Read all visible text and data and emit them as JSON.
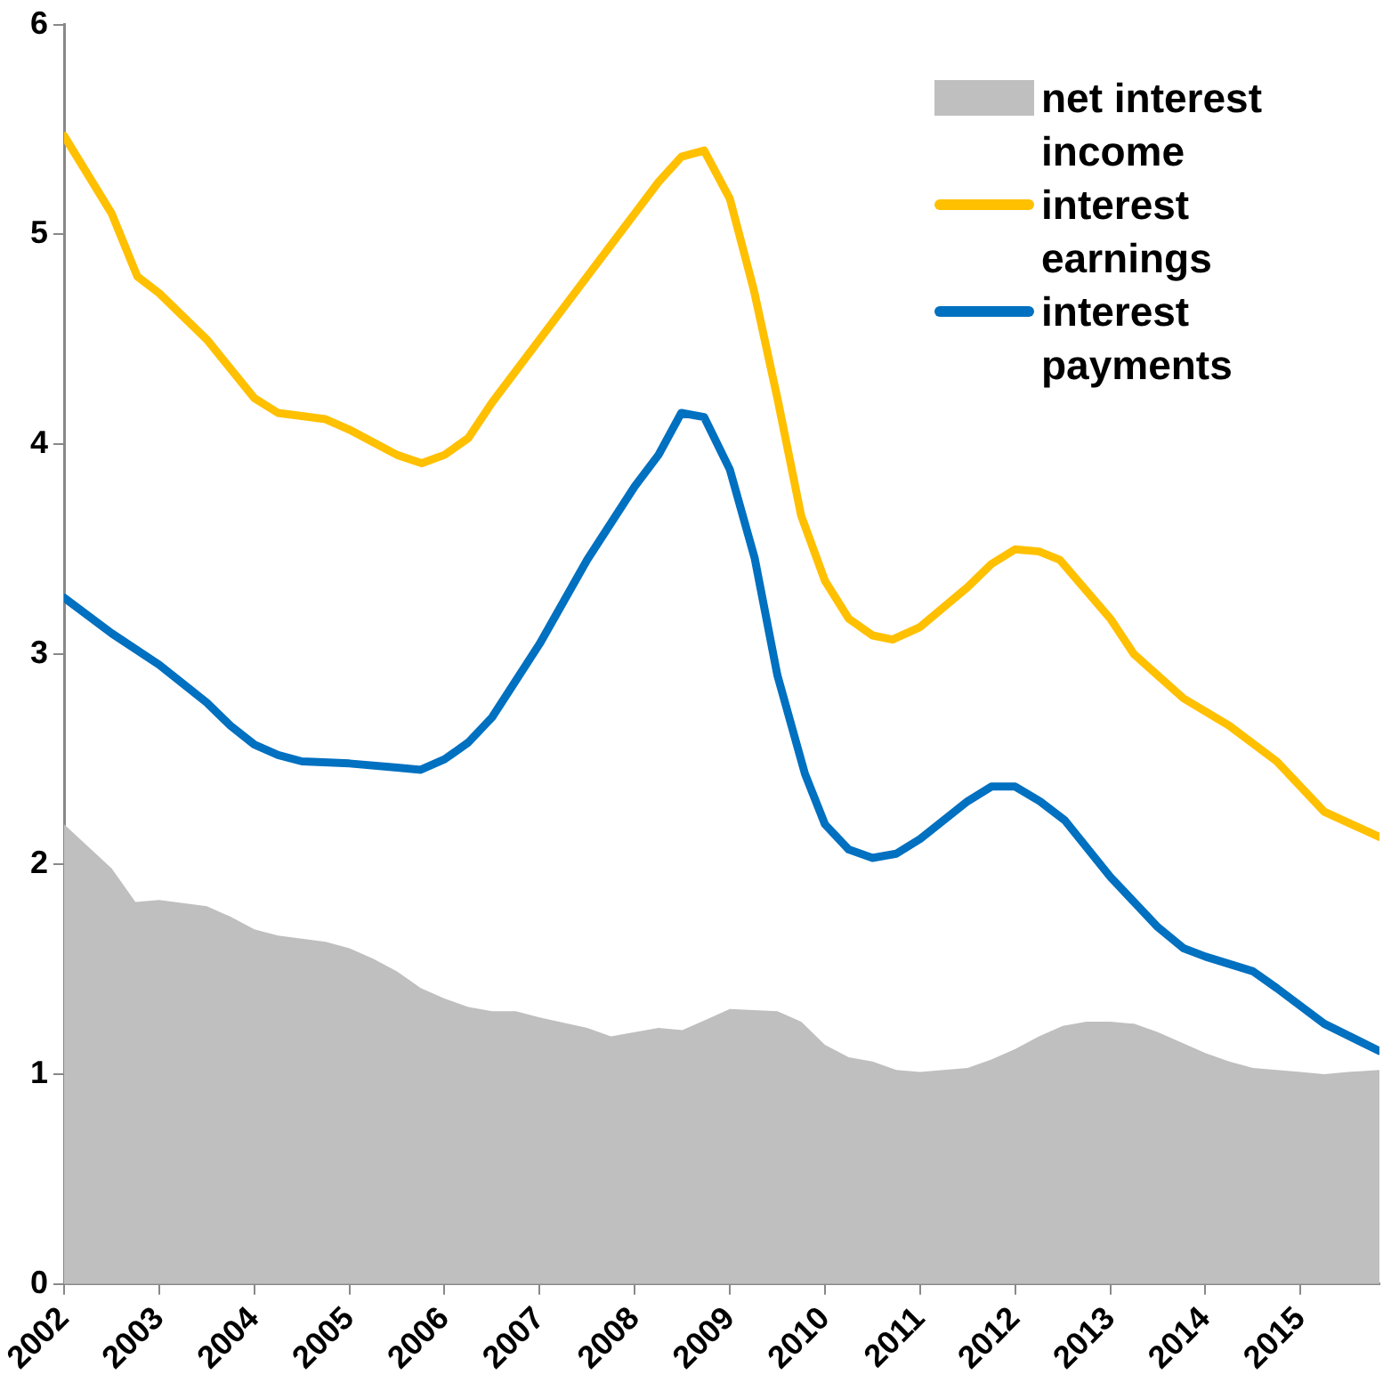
{
  "chart_data": {
    "type": "line",
    "xlim": [
      2002,
      2015.83
    ],
    "xticks": [
      2002,
      2003,
      2004,
      2005,
      2006,
      2007,
      2008,
      2009,
      2010,
      2011,
      2012,
      2013,
      2014,
      2015
    ],
    "ylim": [
      0,
      6
    ],
    "yticks": [
      0,
      1,
      2,
      3,
      4,
      5,
      6
    ],
    "grid": false,
    "legend": "top right",
    "line_style": "solid",
    "marker": "none",
    "series": [
      {
        "name": "net interest income",
        "type": "area",
        "color": "#bfbfbf",
        "x": [
          2002,
          2002.5,
          2002.75,
          2003,
          2003.5,
          2003.75,
          2004,
          2004.25,
          2004.75,
          2005,
          2005.25,
          2005.5,
          2005.75,
          2006,
          2006.25,
          2006.5,
          2006.75,
          2007,
          2007.5,
          2007.75,
          2008,
          2008.25,
          2008.5,
          2008.75,
          2009,
          2009.5,
          2009.75,
          2010,
          2010.25,
          2010.5,
          2010.75,
          2011,
          2011.5,
          2011.75,
          2012,
          2012.25,
          2012.5,
          2012.75,
          2013,
          2013.25,
          2013.5,
          2013.75,
          2014,
          2014.25,
          2014.5,
          2014.75,
          2015,
          2015.25,
          2015.5,
          2015.83
        ],
        "values": [
          2.19,
          1.98,
          1.82,
          1.83,
          1.8,
          1.75,
          1.69,
          1.66,
          1.63,
          1.6,
          1.55,
          1.49,
          1.41,
          1.36,
          1.32,
          1.3,
          1.3,
          1.27,
          1.22,
          1.18,
          1.2,
          1.22,
          1.21,
          1.26,
          1.31,
          1.3,
          1.25,
          1.14,
          1.08,
          1.06,
          1.02,
          1.01,
          1.03,
          1.07,
          1.12,
          1.18,
          1.23,
          1.25,
          1.25,
          1.24,
          1.2,
          1.15,
          1.1,
          1.06,
          1.03,
          1.02,
          1.01,
          1,
          1.01,
          1.02
        ]
      },
      {
        "name": "interest earnings",
        "color": "#ffc000",
        "x": [
          2002,
          2002.5,
          2002.77,
          2003,
          2003.5,
          2004,
          2004.25,
          2004.75,
          2005,
          2005.5,
          2005.76,
          2006,
          2006.25,
          2006.5,
          2007,
          2007.5,
          2008,
          2008.25,
          2008.49,
          2008.73,
          2009,
          2009.25,
          2009.5,
          2009.75,
          2010,
          2010.25,
          2010.5,
          2010.71,
          2011,
          2011.5,
          2011.75,
          2012,
          2012.25,
          2012.47,
          2013,
          2013.25,
          2013.77,
          2014.25,
          2014.75,
          2015.25,
          2015.83
        ],
        "values": [
          5.47,
          5.1,
          4.8,
          4.72,
          4.5,
          4.22,
          4.15,
          4.12,
          4.07,
          3.95,
          3.91,
          3.95,
          4.03,
          4.2,
          4.5,
          4.8,
          5.1,
          5.25,
          5.37,
          5.4,
          5.17,
          4.74,
          4.22,
          3.66,
          3.35,
          3.17,
          3.09,
          3.07,
          3.13,
          3.32,
          3.43,
          3.5,
          3.49,
          3.45,
          3.17,
          3.0,
          2.79,
          2.66,
          2.49,
          2.25,
          2.13
        ]
      },
      {
        "name": "interest payments",
        "color": "#0070c0",
        "x": [
          2002,
          2002.5,
          2003,
          2003.5,
          2003.75,
          2004,
          2004.25,
          2004.5,
          2005,
          2005.5,
          2005.75,
          2006,
          2006.25,
          2006.5,
          2007,
          2007.5,
          2008,
          2008.25,
          2008.49,
          2008.73,
          2009,
          2009.26,
          2009.5,
          2009.79,
          2010,
          2010.25,
          2010.5,
          2010.75,
          2011,
          2011.5,
          2011.75,
          2012,
          2012.26,
          2012.52,
          2013,
          2013.5,
          2013.77,
          2014,
          2014.5,
          2014.75,
          2015.25,
          2015.83
        ],
        "values": [
          3.27,
          3.1,
          2.95,
          2.77,
          2.66,
          2.57,
          2.52,
          2.49,
          2.48,
          2.46,
          2.45,
          2.5,
          2.58,
          2.7,
          3.05,
          3.45,
          3.8,
          3.95,
          4.15,
          4.13,
          3.88,
          3.46,
          2.9,
          2.43,
          2.19,
          2.07,
          2.03,
          2.05,
          2.12,
          2.3,
          2.37,
          2.37,
          2.3,
          2.21,
          1.94,
          1.7,
          1.6,
          1.56,
          1.49,
          1.41,
          1.24,
          1.11
        ]
      }
    ]
  }
}
